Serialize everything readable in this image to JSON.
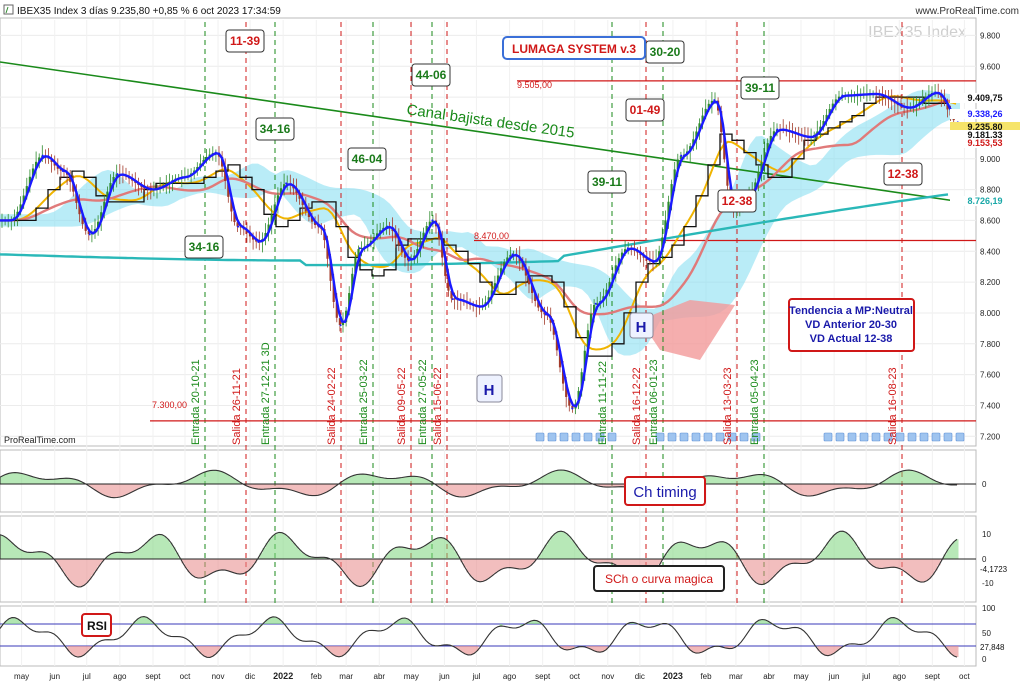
{
  "header": {
    "title": "IBEX35 Index 3 días 9.235,80 +0,85 % 6 oct 2023 17:34:59",
    "brand": "www.ProRealTime.com",
    "watermark": "IBEX35 Index",
    "credit": "ProRealTime.com"
  },
  "colors": {
    "up": "#2e8b2e",
    "down": "#a23a2a",
    "price_line": "#1a1aff",
    "ma_fast": "#f0b400",
    "ma_slow": "#e07a7a",
    "ma_long": "#2ab8b8",
    "cloud": "#7fdcf0",
    "entry": "#1a8a1a",
    "exit": "#d01818",
    "channel": "#1a8a1a",
    "hline": "#d01818"
  },
  "labels": {
    "system": "LUMAGA SYSTEM v.3",
    "channel": "Canal bajista desde 2015",
    "trend_box": [
      "Tendencia a MP:Neutral",
      "VD Anterior 20-30",
      "VD Actual 12-38"
    ],
    "panel2": "Ch timing",
    "panel3": "SCh o curva magica",
    "panel4": "RSI",
    "h_marks": [
      "H",
      "H"
    ],
    "level_9505": "9.505,00",
    "level_8470": "8.470,00",
    "level_7300": "7.300,00"
  },
  "boxes": [
    {
      "text": "11-39",
      "kind": "exit"
    },
    {
      "text": "34-16",
      "kind": "entry"
    },
    {
      "text": "44-06",
      "kind": "entry"
    },
    {
      "text": "46-04",
      "kind": "entry"
    },
    {
      "text": "34-16",
      "kind": "entry"
    },
    {
      "text": "30-20",
      "kind": "entry"
    },
    {
      "text": "01-49",
      "kind": "exit"
    },
    {
      "text": "39-11",
      "kind": "entry"
    },
    {
      "text": "39-11",
      "kind": "entry"
    },
    {
      "text": "12-38",
      "kind": "exit"
    },
    {
      "text": "12-38",
      "kind": "exit"
    }
  ],
  "signals": [
    {
      "text": "Entrada 20-10-21",
      "kind": "entry"
    },
    {
      "text": "Salida 26-11-21",
      "kind": "exit"
    },
    {
      "text": "Entrada 27-12-21 3D",
      "kind": "entry"
    },
    {
      "text": "Salida 24-02-22",
      "kind": "exit"
    },
    {
      "text": "Entrada 25-03-22",
      "kind": "entry"
    },
    {
      "text": "Salida 09-05-22",
      "kind": "exit"
    },
    {
      "text": "Entrada 27-05-22",
      "kind": "entry"
    },
    {
      "text": "Salida 15-06-22",
      "kind": "exit"
    },
    {
      "text": "Entrada 11-11-22",
      "kind": "entry"
    },
    {
      "text": "Salida 16-12-22",
      "kind": "exit"
    },
    {
      "text": "Entrada 06-01-23",
      "kind": "entry"
    },
    {
      "text": "Salida 13-03-23",
      "kind": "exit"
    },
    {
      "text": "Entrada 05-04-23",
      "kind": "entry"
    },
    {
      "text": "Salida 16-08-23",
      "kind": "exit"
    }
  ],
  "chart_data": {
    "type": "line",
    "title": "IBEX35 Index 3 días",
    "price_ticks": [
      "9.800",
      "9.600",
      "9.400",
      "9.200",
      "9.000",
      "8.800",
      "8.600",
      "8.400",
      "8.200",
      "8.000",
      "7.800",
      "7.600",
      "7.400",
      "7.200"
    ],
    "price_ylim": [
      7150,
      9900
    ],
    "right_labels": [
      "9.409,75",
      "9.338,26",
      "9.235,80",
      "9.181,33",
      "9.153,53",
      "8.726,19"
    ],
    "x_ticks": [
      "may",
      "jun",
      "jul",
      "ago",
      "sept",
      "oct",
      "nov",
      "dic",
      "2022",
      "feb",
      "mar",
      "abr",
      "may",
      "jun",
      "jul",
      "ago",
      "sept",
      "oct",
      "nov",
      "dic",
      "2023",
      "feb",
      "mar",
      "abr",
      "may",
      "jun",
      "jul",
      "ago",
      "sept",
      "oct"
    ],
    "horizontal_levels": [
      9505,
      8470,
      7300
    ],
    "price_series": {
      "name": "IBEX35",
      "x": [
        "2021-05-01",
        "2021-06-01",
        "2021-06-20",
        "2021-07-15",
        "2021-08-10",
        "2021-09-10",
        "2021-10-10",
        "2021-11-10",
        "2021-12-01",
        "2021-12-20",
        "2022-01-15",
        "2022-02-15",
        "2022-03-07",
        "2022-03-25",
        "2022-04-20",
        "2022-05-10",
        "2022-06-01",
        "2022-06-20",
        "2022-07-15",
        "2022-08-15",
        "2022-09-15",
        "2022-10-10",
        "2022-11-01",
        "2022-12-01",
        "2022-12-25",
        "2023-01-20",
        "2023-02-20",
        "2023-03-10",
        "2023-03-20",
        "2023-04-20",
        "2023-05-20",
        "2023-06-20",
        "2023-07-20",
        "2023-08-20",
        "2023-09-15",
        "2023-10-06"
      ],
      "values": [
        8600,
        9020,
        8920,
        8510,
        8900,
        8800,
        8880,
        9040,
        8560,
        8460,
        8840,
        8560,
        7920,
        8420,
        8560,
        8340,
        8600,
        8090,
        8040,
        8380,
        7990,
        7380,
        8060,
        8420,
        8330,
        9020,
        9380,
        8660,
        8730,
        9190,
        9140,
        9410,
        9420,
        9330,
        9430,
        9236
      ]
    },
    "indicators": [
      "Ch timing",
      "SCh o curva magica",
      "RSI"
    ],
    "panel2_ticks": [
      "0"
    ],
    "panel3_ticks": [
      "10",
      "0",
      "-10"
    ],
    "panel3_last": "-4,1723",
    "panel4_ticks": [
      "100",
      "50",
      "0"
    ],
    "panel4_last": "27,848"
  }
}
